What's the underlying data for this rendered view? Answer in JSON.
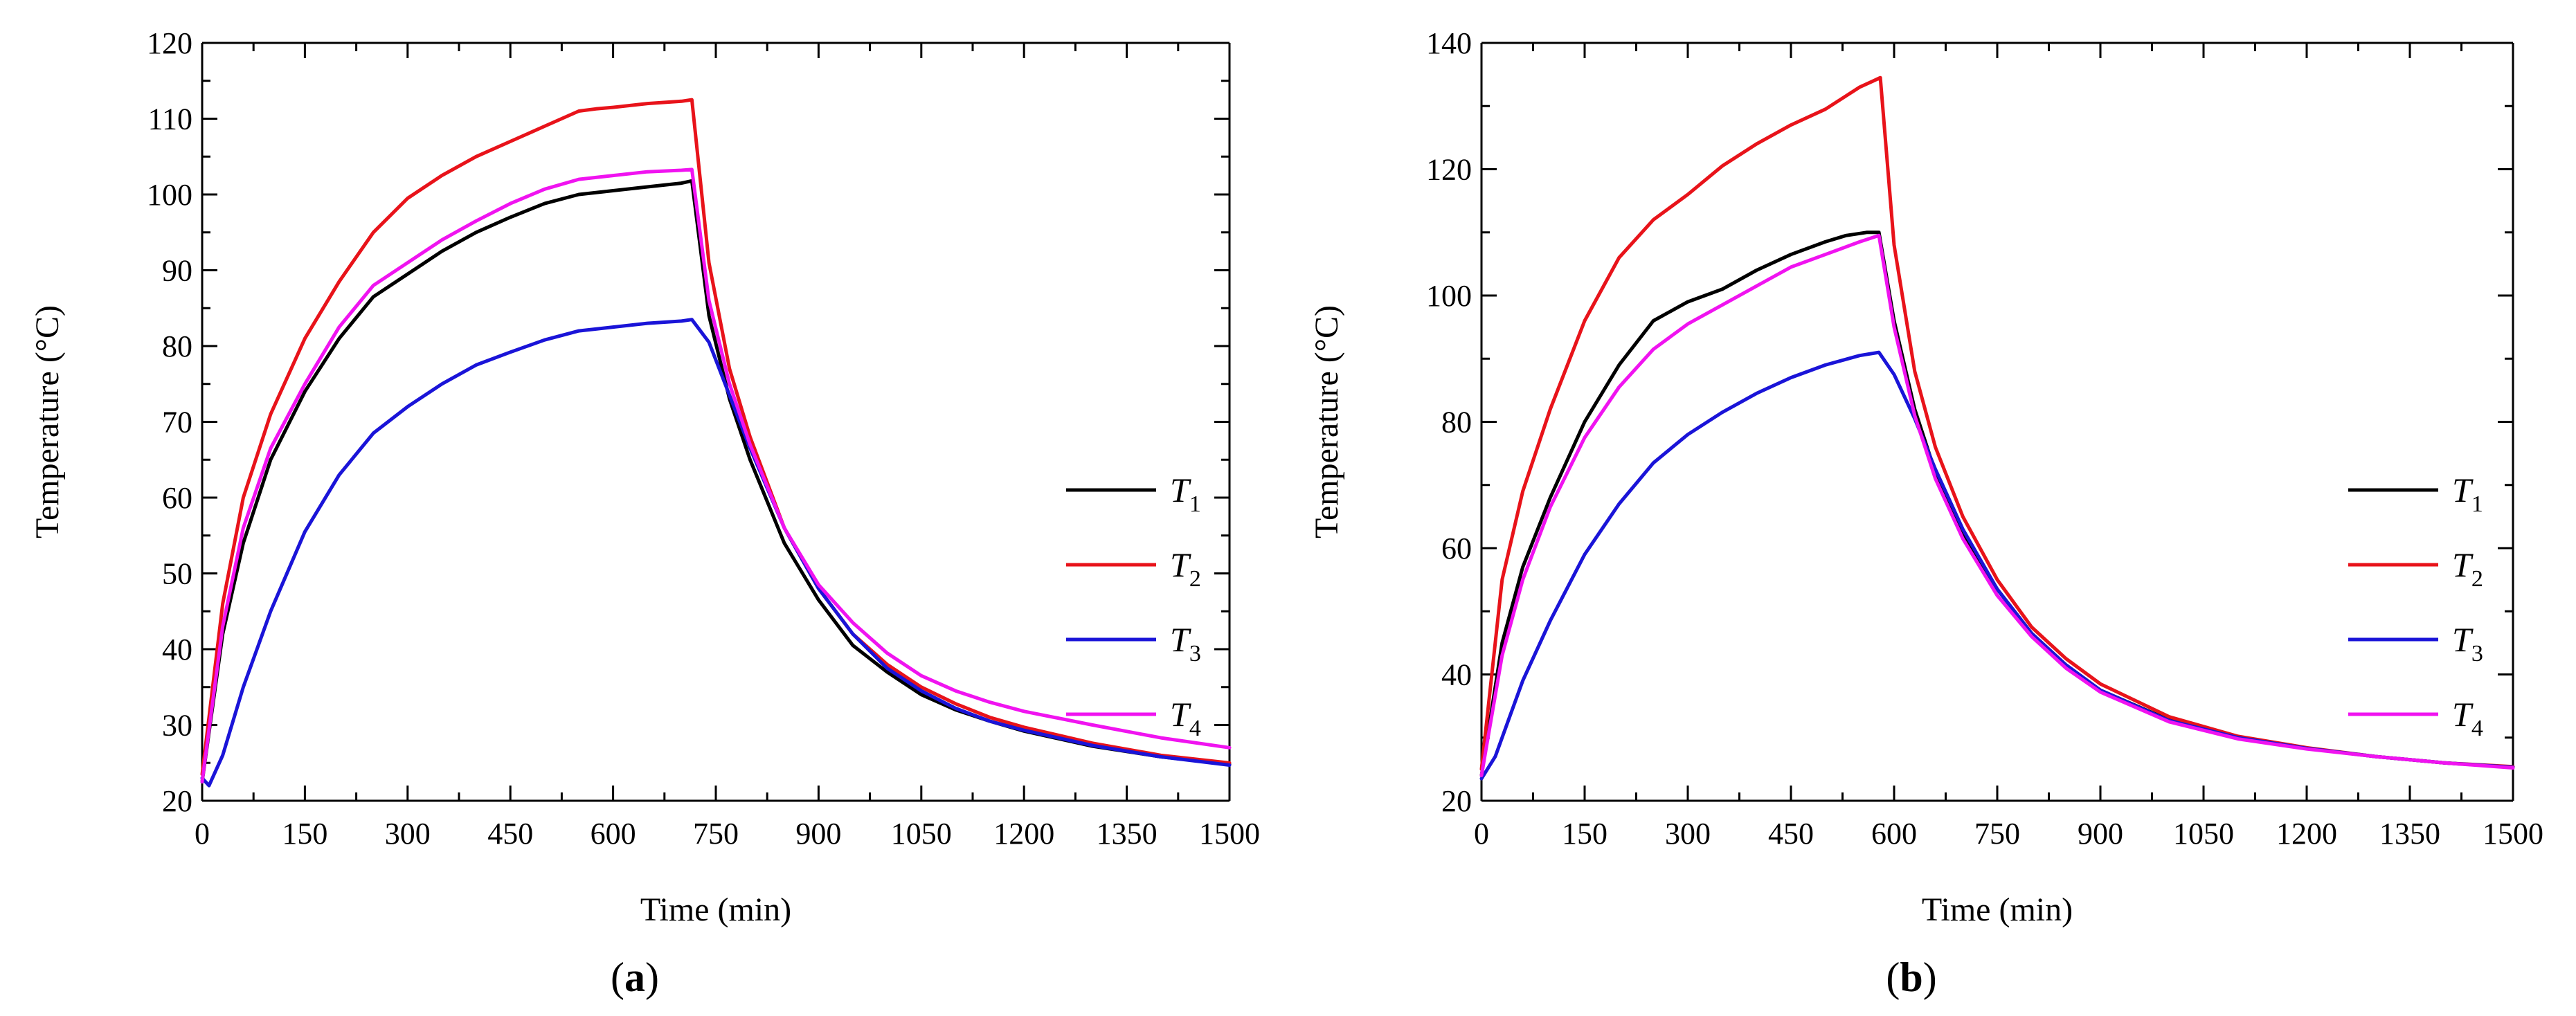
{
  "chart_data": [
    {
      "type": "line",
      "panel_label": "(a)",
      "panel_letter": "a",
      "xlabel": "Time (min)",
      "ylabel": "Temperature (°C)",
      "xlim": [
        0,
        1500
      ],
      "ylim": [
        20,
        120
      ],
      "xticks": [
        0,
        150,
        300,
        450,
        600,
        750,
        900,
        1050,
        1200,
        1350,
        1500
      ],
      "yticks": [
        20,
        30,
        40,
        50,
        60,
        70,
        80,
        90,
        100,
        110,
        120
      ],
      "legend_position": "center-right",
      "series": [
        {
          "name": "T1",
          "base": "T",
          "sub": "1",
          "color": "#000000",
          "x": [
            0,
            30,
            60,
            100,
            150,
            200,
            250,
            300,
            350,
            400,
            450,
            500,
            550,
            600,
            650,
            700,
            715,
            740,
            770,
            800,
            850,
            900,
            950,
            1000,
            1050,
            1100,
            1150,
            1200,
            1300,
            1400,
            1500
          ],
          "y": [
            22.5,
            42,
            54,
            65,
            74,
            81,
            86.5,
            89.5,
            92.5,
            95,
            97,
            98.8,
            100,
            100.5,
            101,
            101.5,
            101.8,
            84,
            73,
            65,
            54,
            46.5,
            40.5,
            37,
            34,
            32,
            30.5,
            29.2,
            27.2,
            25.8,
            24.8
          ]
        },
        {
          "name": "T2",
          "base": "T",
          "sub": "2",
          "color": "#e8131a",
          "x": [
            0,
            30,
            60,
            100,
            150,
            200,
            250,
            300,
            350,
            400,
            450,
            500,
            550,
            575,
            600,
            650,
            700,
            715,
            740,
            770,
            800,
            850,
            900,
            950,
            1000,
            1050,
            1100,
            1150,
            1200,
            1300,
            1400,
            1500
          ],
          "y": [
            23.5,
            46,
            60,
            71,
            81,
            88.5,
            95,
            99.5,
            102.5,
            105,
            107,
            109,
            111,
            111.3,
            111.5,
            112,
            112.3,
            112.5,
            91,
            77,
            68,
            56,
            48,
            42,
            38,
            35,
            32.8,
            31,
            29.7,
            27.6,
            26,
            25
          ]
        },
        {
          "name": "T3",
          "base": "T",
          "sub": "3",
          "color": "#1a14d8",
          "x": [
            0,
            10,
            30,
            60,
            100,
            150,
            200,
            250,
            300,
            350,
            400,
            450,
            500,
            550,
            600,
            650,
            700,
            715,
            740,
            770,
            800,
            850,
            900,
            950,
            1000,
            1050,
            1100,
            1150,
            1200,
            1300,
            1400,
            1500
          ],
          "y": [
            23,
            22,
            26,
            35,
            45,
            55.5,
            63,
            68.5,
            72,
            75,
            77.5,
            79.2,
            80.8,
            82,
            82.5,
            83,
            83.3,
            83.5,
            80.5,
            73.5,
            66.5,
            56,
            48,
            42,
            37.5,
            34.5,
            32.2,
            30.5,
            29.3,
            27.3,
            25.8,
            24.7
          ]
        },
        {
          "name": "T4",
          "base": "T",
          "sub": "4",
          "color": "#f013f0",
          "x": [
            0,
            30,
            60,
            100,
            150,
            200,
            250,
            300,
            350,
            400,
            450,
            500,
            550,
            600,
            650,
            700,
            715,
            740,
            770,
            800,
            850,
            900,
            950,
            1000,
            1050,
            1100,
            1150,
            1200,
            1300,
            1400,
            1500
          ],
          "y": [
            22.5,
            43,
            56,
            66.5,
            75,
            82.5,
            88,
            91,
            94,
            96.5,
            98.8,
            100.7,
            102,
            102.5,
            103,
            103.2,
            103.3,
            86,
            75,
            67,
            56,
            48.5,
            43.5,
            39.5,
            36.5,
            34.5,
            33,
            31.8,
            30,
            28.3,
            27
          ]
        }
      ]
    },
    {
      "type": "line",
      "panel_label": "(b)",
      "panel_letter": "b",
      "xlabel": "Time (min)",
      "ylabel": "Temperature (°C)",
      "xlim": [
        0,
        1500
      ],
      "ylim": [
        20,
        140
      ],
      "xticks": [
        0,
        150,
        300,
        450,
        600,
        750,
        900,
        1050,
        1200,
        1350,
        1500
      ],
      "yticks": [
        20,
        40,
        60,
        80,
        100,
        120,
        140
      ],
      "legend_position": "center-right",
      "series": [
        {
          "name": "T1",
          "base": "T",
          "sub": "1",
          "color": "#000000",
          "x": [
            0,
            30,
            60,
            100,
            150,
            200,
            250,
            300,
            350,
            400,
            450,
            500,
            530,
            560,
            578,
            600,
            630,
            660,
            700,
            750,
            800,
            850,
            900,
            1000,
            1100,
            1200,
            1300,
            1400,
            1500
          ],
          "y": [
            24,
            45,
            57,
            68,
            80,
            89,
            96,
            99,
            101,
            104,
            106.5,
            108.5,
            109.5,
            110,
            110,
            96,
            82,
            72,
            62.5,
            53.5,
            46.5,
            41.5,
            37.5,
            32.8,
            30,
            28.3,
            27,
            26,
            25.3
          ]
        },
        {
          "name": "T2",
          "base": "T",
          "sub": "2",
          "color": "#e8131a",
          "x": [
            0,
            30,
            60,
            100,
            150,
            200,
            250,
            300,
            350,
            400,
            450,
            500,
            550,
            570,
            580,
            600,
            630,
            660,
            700,
            750,
            800,
            850,
            900,
            1000,
            1100,
            1200,
            1300,
            1400,
            1500
          ],
          "y": [
            25,
            55,
            69,
            82,
            96,
            106,
            112,
            116,
            120.5,
            124,
            127,
            129.5,
            133,
            134,
            134.5,
            108,
            88,
            76,
            65,
            55,
            47.5,
            42.5,
            38.5,
            33.3,
            30.2,
            28.4,
            27,
            26,
            25.4
          ]
        },
        {
          "name": "T3",
          "base": "T",
          "sub": "3",
          "color": "#1a14d8",
          "x": [
            0,
            20,
            40,
            60,
            100,
            150,
            200,
            250,
            300,
            350,
            400,
            450,
            500,
            550,
            578,
            600,
            630,
            660,
            700,
            750,
            800,
            850,
            900,
            1000,
            1100,
            1200,
            1300,
            1400,
            1500
          ],
          "y": [
            23.5,
            27,
            33,
            39,
            48.5,
            59,
            67,
            73.5,
            78,
            81.5,
            84.5,
            87,
            89,
            90.5,
            91,
            87.5,
            80.5,
            72.5,
            63,
            53.5,
            46.5,
            41.5,
            37.5,
            32.7,
            30,
            28.3,
            27,
            26,
            25.3
          ]
        },
        {
          "name": "T4",
          "base": "T",
          "sub": "4",
          "color": "#f013f0",
          "x": [
            0,
            30,
            60,
            100,
            150,
            200,
            250,
            300,
            350,
            400,
            450,
            500,
            550,
            578,
            600,
            630,
            660,
            700,
            750,
            800,
            850,
            900,
            1000,
            1100,
            1200,
            1300,
            1400,
            1500
          ],
          "y": [
            24,
            43,
            55,
            66.5,
            77.5,
            85.5,
            91.5,
            95.5,
            98.5,
            101.5,
            104.5,
            106.5,
            108.5,
            109.5,
            95,
            81,
            71,
            61.5,
            52.5,
            46,
            41,
            37.2,
            32.5,
            29.8,
            28.2,
            27,
            26,
            25.2
          ]
        }
      ]
    }
  ]
}
